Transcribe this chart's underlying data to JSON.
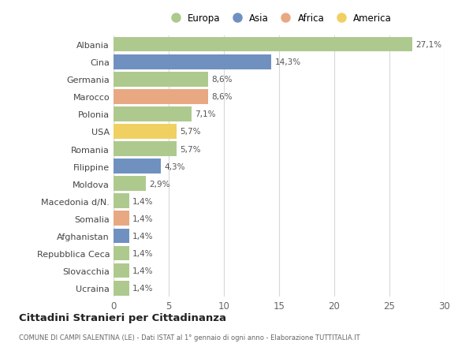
{
  "countries": [
    "Albania",
    "Cina",
    "Germania",
    "Marocco",
    "Polonia",
    "USA",
    "Romania",
    "Filippine",
    "Moldova",
    "Macedonia d/N.",
    "Somalia",
    "Afghanistan",
    "Repubblica Ceca",
    "Slovacchia",
    "Ucraina"
  ],
  "values": [
    27.1,
    14.3,
    8.6,
    8.6,
    7.1,
    5.7,
    5.7,
    4.3,
    2.9,
    1.4,
    1.4,
    1.4,
    1.4,
    1.4,
    1.4
  ],
  "labels": [
    "27,1%",
    "14,3%",
    "8,6%",
    "8,6%",
    "7,1%",
    "5,7%",
    "5,7%",
    "4,3%",
    "2,9%",
    "1,4%",
    "1,4%",
    "1,4%",
    "1,4%",
    "1,4%",
    "1,4%"
  ],
  "continents": [
    "Europa",
    "Asia",
    "Europa",
    "Africa",
    "Europa",
    "America",
    "Europa",
    "Asia",
    "Europa",
    "Europa",
    "Africa",
    "Asia",
    "Europa",
    "Europa",
    "Europa"
  ],
  "colors": {
    "Europa": "#aec98e",
    "Asia": "#7090c0",
    "Africa": "#e8a882",
    "America": "#f0d060"
  },
  "legend_order": [
    "Europa",
    "Asia",
    "Africa",
    "America"
  ],
  "xlim": [
    0,
    30
  ],
  "xticks": [
    0,
    5,
    10,
    15,
    20,
    25,
    30
  ],
  "title": "Cittadini Stranieri per Cittadinanza",
  "subtitle": "COMUNE DI CAMPI SALENTINA (LE) - Dati ISTAT al 1° gennaio di ogni anno - Elaborazione TUTTITALIA.IT",
  "bg_color": "#ffffff",
  "grid_color": "#d8d8d8",
  "bar_height": 0.85,
  "label_fontsize": 7.5,
  "ytick_fontsize": 8.0,
  "xtick_fontsize": 8.5
}
